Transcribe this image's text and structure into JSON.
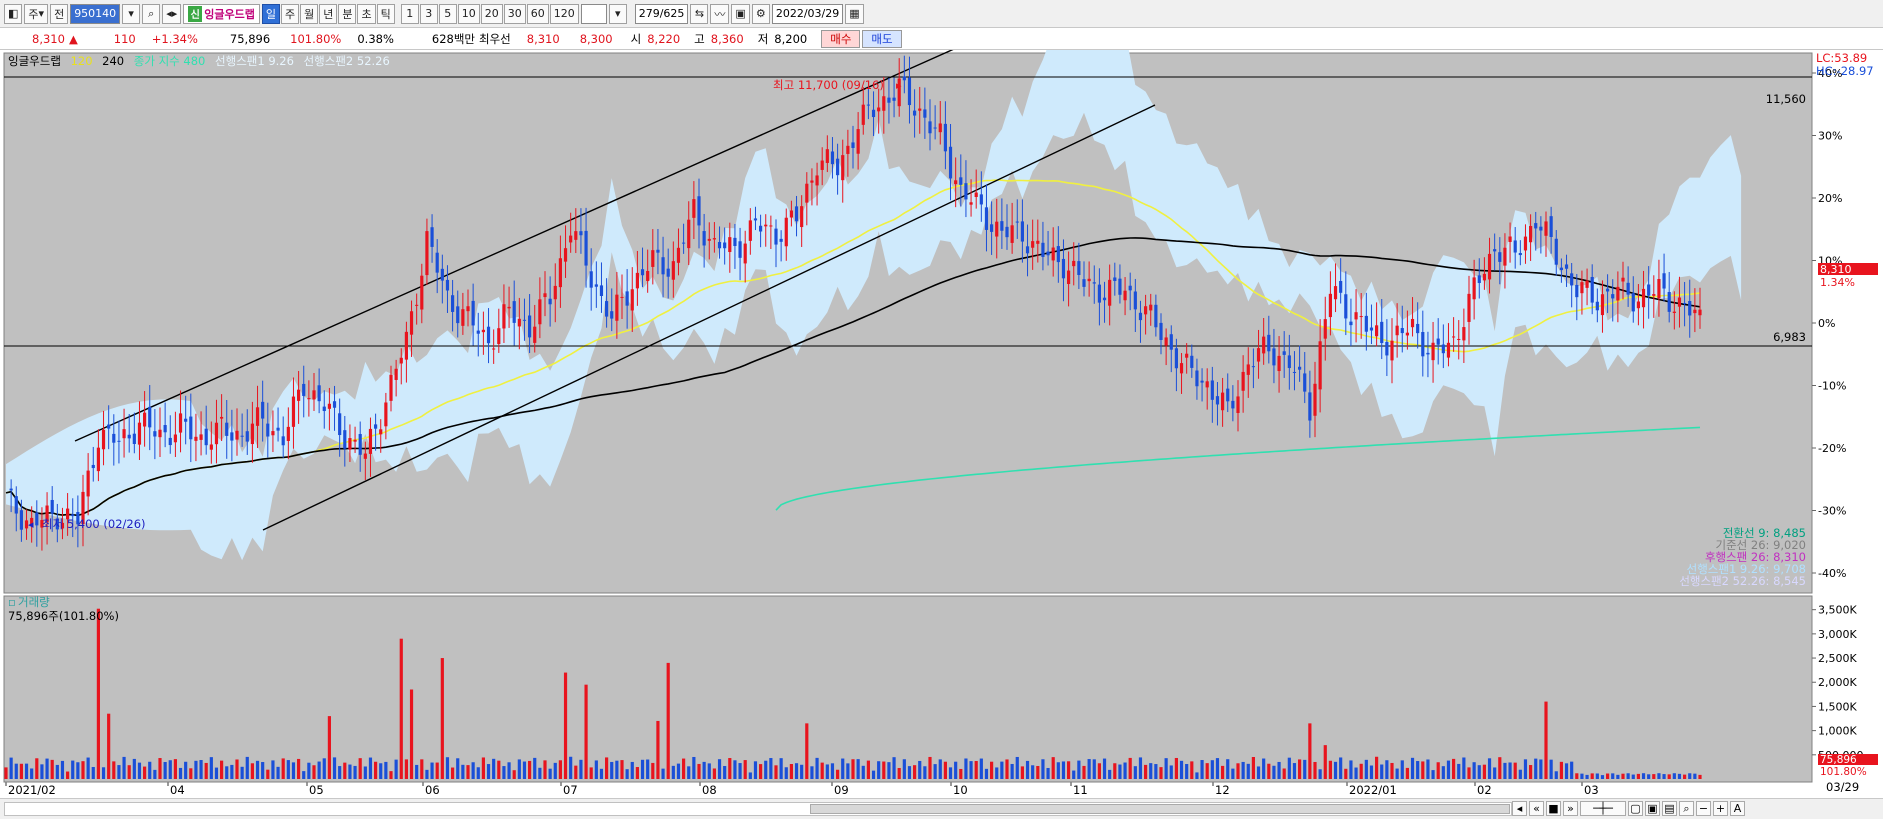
{
  "toolbar": {
    "period_label": "주",
    "jeon_label": "전",
    "code_value": "950140",
    "name_badge": "신",
    "stock_name": "잉글우드랩",
    "interval_buttons": [
      "일",
      "주",
      "월",
      "년",
      "분",
      "초",
      "틱"
    ],
    "active_interval": "일",
    "minute_buttons": [
      "1",
      "3",
      "5",
      "10",
      "20",
      "30",
      "60",
      "120"
    ],
    "count_value": "279/625",
    "date_value": "2022/03/29"
  },
  "quote": {
    "price": "8,310",
    "arrow": "▲",
    "change": "110",
    "change_pct": "+1.34%",
    "volume": "75,896",
    "vol_ratio": "101.80%",
    "turnover": "0.38%",
    "amount": "628백만",
    "best_label": "최우선",
    "ask": "8,310",
    "bid": "8,300",
    "open_label": "시",
    "open": "8,220",
    "high_label": "고",
    "high": "8,360",
    "low_label": "저",
    "low": "8,200",
    "buy_label": "매수",
    "sell_label": "매도"
  },
  "price_panel": {
    "legend_name": "잉글우드랩",
    "legend_ma1": "120",
    "legend_ma2": "240",
    "legend_ma3": "종가 지수 480",
    "legend_span1": "선행스팬1 9.26",
    "legend_span2": "선행스팬2 52.26",
    "lc": "LC:53.89",
    "hc": "HC:-28.97",
    "high_annotation": "최고 11,700 (09/16)",
    "low_annotation": "최저 5,400 (02/26)",
    "hline_upper_label": "11,560",
    "hline_lower_label": "6,983",
    "price_badge": "8,310",
    "price_badge_pct": "1.34%",
    "ichimoku_values": [
      {
        "text": "전환선 9: 8,485",
        "color": "#00a080"
      },
      {
        "text": "기준선 26: 9,020",
        "color": "#808080"
      },
      {
        "text": "후행스팬 26: 8,310",
        "color": "#c030c0"
      },
      {
        "text": "선행스팬1 9.26: 9,708",
        "color": "#b0e0ff"
      },
      {
        "text": "선행스팬2 52.26: 8,545",
        "color": "#d8d8ff"
      }
    ],
    "y_ticks": [
      "40%",
      "30%",
      "20%",
      "10%",
      "0%",
      "-10%",
      "-20%",
      "-30%",
      "-40%"
    ]
  },
  "volume_panel": {
    "title": "거래량",
    "value_text": "75,896주(101.80%)",
    "y_ticks": [
      "3,500K",
      "3,000K",
      "2,500K",
      "2,000K",
      "1,500K",
      "1,000K",
      "500,000"
    ],
    "badge": "75,896",
    "badge_pct": "101.80%"
  },
  "x_axis": {
    "labels": [
      "2021/02",
      "04",
      "05",
      "06",
      "07",
      "08",
      "09",
      "10",
      "11",
      "12",
      "2022/01",
      "02",
      "03"
    ],
    "end_label": "03/29"
  },
  "colors": {
    "panel_bg": "#c0c0c0",
    "up": "#e8141e",
    "down": "#1a4fd8",
    "cloud": "#cfeafc",
    "ma120": "#f0f040",
    "ma240": "#000000",
    "ma480": "#30e0b0"
  },
  "chart_data": {
    "type": "candlestick",
    "price_range": [
      4500,
      12000
    ],
    "percent_axis_range": [
      -40,
      40
    ],
    "highest": {
      "value": 11700,
      "date": "09/16"
    },
    "lowest": {
      "value": 5400,
      "date": "02/26"
    },
    "horizontal_lines": [
      11560,
      6983
    ],
    "close_path": [
      [
        0,
        5800
      ],
      [
        5,
        5450
      ],
      [
        10,
        5600
      ],
      [
        14,
        5500
      ],
      [
        18,
        6700
      ],
      [
        22,
        6600
      ],
      [
        26,
        6850
      ],
      [
        30,
        6700
      ],
      [
        34,
        6800
      ],
      [
        38,
        6650
      ],
      [
        42,
        6750
      ],
      [
        46,
        6700
      ],
      [
        50,
        6900
      ],
      [
        54,
        6650
      ],
      [
        58,
        7400
      ],
      [
        62,
        7100
      ],
      [
        66,
        6700
      ],
      [
        70,
        6400
      ],
      [
        74,
        7200
      ],
      [
        78,
        8000
      ],
      [
        82,
        9400
      ],
      [
        86,
        8600
      ],
      [
        90,
        8300
      ],
      [
        94,
        8000
      ],
      [
        98,
        8400
      ],
      [
        102,
        8200
      ],
      [
        106,
        8600
      ],
      [
        110,
        9600
      ],
      [
        114,
        8900
      ],
      [
        118,
        8300
      ],
      [
        122,
        8800
      ],
      [
        126,
        9100
      ],
      [
        130,
        9050
      ],
      [
        134,
        9800
      ],
      [
        138,
        9300
      ],
      [
        142,
        9300
      ],
      [
        146,
        9600
      ],
      [
        150,
        9500
      ],
      [
        154,
        9700
      ],
      [
        158,
        10500
      ],
      [
        162,
        10400
      ],
      [
        166,
        11000
      ],
      [
        170,
        11300
      ],
      [
        174,
        11500
      ],
      [
        178,
        11200
      ],
      [
        182,
        10800
      ],
      [
        186,
        10100
      ],
      [
        190,
        9800
      ],
      [
        194,
        9500
      ],
      [
        198,
        9500
      ],
      [
        202,
        9200
      ],
      [
        206,
        9100
      ],
      [
        210,
        8800
      ],
      [
        214,
        8700
      ],
      [
        218,
        8700
      ],
      [
        222,
        8400
      ],
      [
        226,
        8000
      ],
      [
        230,
        7600
      ],
      [
        234,
        7400
      ],
      [
        238,
        7000
      ],
      [
        242,
        7700
      ],
      [
        246,
        7900
      ],
      [
        250,
        7700
      ],
      [
        254,
        7100
      ],
      [
        258,
        8700
      ],
      [
        262,
        8400
      ],
      [
        266,
        8100
      ],
      [
        270,
        8000
      ],
      [
        274,
        8200
      ],
      [
        278,
        7800
      ],
      [
        282,
        8000
      ],
      [
        286,
        8700
      ],
      [
        290,
        9300
      ],
      [
        294,
        9200
      ],
      [
        298,
        9700
      ],
      [
        302,
        9200
      ],
      [
        306,
        8700
      ],
      [
        310,
        8600
      ],
      [
        314,
        8700
      ],
      [
        318,
        8600
      ],
      [
        322,
        8700
      ],
      [
        326,
        8500
      ],
      [
        330,
        8310
      ]
    ],
    "volume_spikes_k": [
      {
        "x": 18,
        "v": 3520
      },
      {
        "x": 20,
        "v": 1350
      },
      {
        "x": 63,
        "v": 1300
      },
      {
        "x": 77,
        "v": 2900
      },
      {
        "x": 79,
        "v": 1850
      },
      {
        "x": 85,
        "v": 2500
      },
      {
        "x": 109,
        "v": 2200
      },
      {
        "x": 113,
        "v": 1950
      },
      {
        "x": 127,
        "v": 1200
      },
      {
        "x": 129,
        "v": 2400
      },
      {
        "x": 156,
        "v": 1150
      },
      {
        "x": 254,
        "v": 1150
      },
      {
        "x": 257,
        "v": 700
      },
      {
        "x": 300,
        "v": 1600
      }
    ],
    "volume_ylim_k": [
      0,
      3700
    ]
  }
}
